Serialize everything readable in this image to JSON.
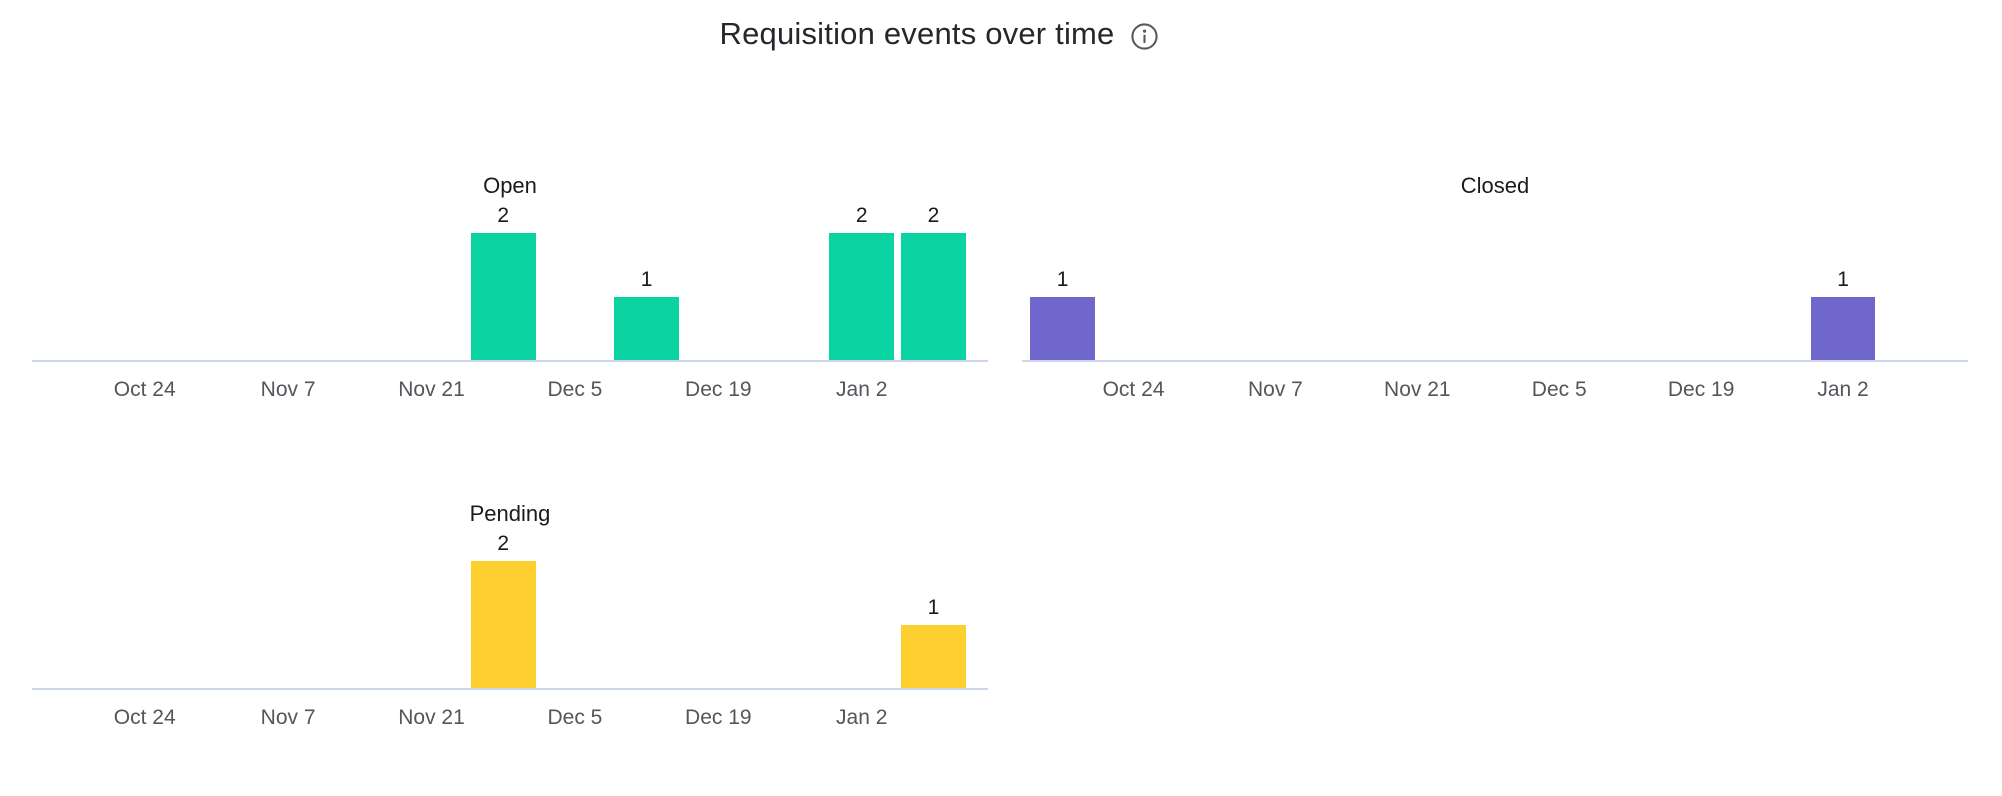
{
  "header": {
    "title": "Requisition events over time"
  },
  "icons": {
    "info": "info-icon"
  },
  "colors": {
    "open": "#0bd3a1",
    "closed": "#7067cc",
    "pending": "#fdd02f",
    "axis_line": "#cbd5ee",
    "tick_text": "#53565b",
    "value_text": "#17191c",
    "subplot_title_text": "#191b1e",
    "page_title_text": "#24272b",
    "info_icon": "#56595e"
  },
  "chart_data": [
    {
      "type": "bar",
      "title": "Open",
      "series_color_key": "open",
      "x_timeline_weeks": [
        "Oct 17",
        "Oct 24",
        "Oct 31",
        "Nov 7",
        "Nov 14",
        "Nov 21",
        "Nov 28",
        "Dec 5",
        "Dec 12",
        "Dec 19",
        "Dec 26",
        "Jan 2",
        "Jan 9"
      ],
      "x_tick_labels": [
        "Oct 24",
        "Nov 7",
        "Nov 21",
        "Dec 5",
        "Dec 19",
        "Jan 2"
      ],
      "bars": [
        {
          "x": "Nov 28",
          "value": 2
        },
        {
          "x": "Dec 12",
          "value": 1
        },
        {
          "x": "Jan 2",
          "value": 2
        },
        {
          "x": "Jan 9",
          "value": 2
        }
      ],
      "ylim": [
        0,
        2
      ],
      "grid": false,
      "legend": false
    },
    {
      "type": "bar",
      "title": "Closed",
      "series_color_key": "closed",
      "x_timeline_weeks": [
        "Oct 17",
        "Oct 24",
        "Oct 31",
        "Nov 7",
        "Nov 14",
        "Nov 21",
        "Nov 28",
        "Dec 5",
        "Dec 12",
        "Dec 19",
        "Dec 26",
        "Jan 2",
        "Jan 9"
      ],
      "x_tick_labels": [
        "Oct 24",
        "Nov 7",
        "Nov 21",
        "Dec 5",
        "Dec 19",
        "Jan 2"
      ],
      "bars": [
        {
          "x": "Oct 17",
          "value": 1
        },
        {
          "x": "Jan 2",
          "value": 1
        }
      ],
      "ylim": [
        0,
        2
      ],
      "grid": false,
      "legend": false
    },
    {
      "type": "bar",
      "title": "Pending",
      "series_color_key": "pending",
      "x_timeline_weeks": [
        "Oct 17",
        "Oct 24",
        "Oct 31",
        "Nov 7",
        "Nov 14",
        "Nov 21",
        "Nov 28",
        "Dec 5",
        "Dec 12",
        "Dec 19",
        "Dec 26",
        "Jan 2",
        "Jan 9"
      ],
      "x_tick_labels": [
        "Oct 24",
        "Nov 7",
        "Nov 21",
        "Dec 5",
        "Dec 19",
        "Jan 2"
      ],
      "bars": [
        {
          "x": "Nov 28",
          "value": 2
        },
        {
          "x": "Jan 9",
          "value": 1
        }
      ],
      "ylim": [
        0,
        2
      ],
      "grid": false,
      "legend": false
    }
  ]
}
